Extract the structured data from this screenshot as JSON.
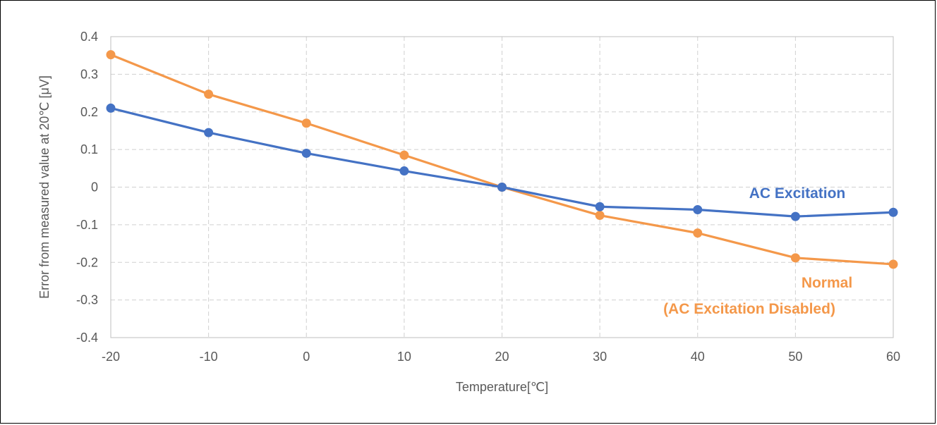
{
  "chart_data": {
    "type": "line",
    "title": "",
    "xlabel": "Temperature[℃]",
    "ylabel": "Error from measured value at 20℃ [μV]",
    "x": [
      -20,
      -10,
      0,
      10,
      20,
      30,
      40,
      50,
      60
    ],
    "xlim": [
      -20,
      60
    ],
    "ylim": [
      -0.4,
      0.4
    ],
    "xticks": [
      "-20",
      "-10",
      "0",
      "10",
      "20",
      "30",
      "40",
      "50",
      "60"
    ],
    "yticks": [
      "0.4",
      "0.3",
      "0.2",
      "0.1",
      "0",
      "-0.1",
      "-0.2",
      "-0.3",
      "-0.4"
    ],
    "grid": true,
    "series": [
      {
        "name": "AC Excitation",
        "color": "#4472C4",
        "values": [
          0.21,
          0.145,
          0.09,
          0.043,
          0.0,
          -0.052,
          -0.06,
          -0.078,
          -0.067
        ]
      },
      {
        "name_lines": [
          "Normal",
          "(AC Excitation Disabled)"
        ],
        "color": "#F4984A",
        "values": [
          0.352,
          0.247,
          0.17,
          0.085,
          0.0,
          -0.075,
          -0.122,
          -0.188,
          -0.205
        ]
      }
    ]
  }
}
